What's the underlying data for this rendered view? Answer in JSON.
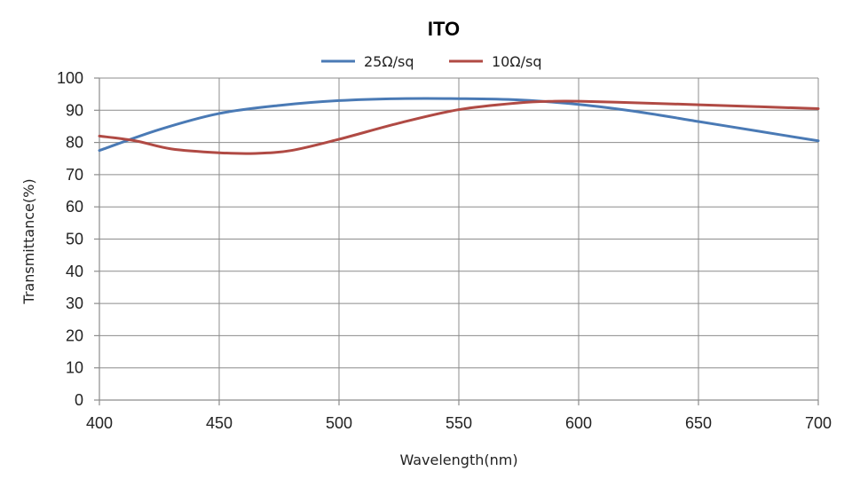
{
  "chart_data": {
    "type": "line",
    "title": "ITO",
    "xlabel": "Wavelength(nm)",
    "ylabel": "Transmittance(%)",
    "xlim": [
      400,
      700
    ],
    "ylim": [
      0,
      100
    ],
    "x_ticks": [
      400,
      450,
      500,
      550,
      600,
      650,
      700
    ],
    "y_ticks": [
      0,
      10,
      20,
      30,
      40,
      50,
      60,
      70,
      80,
      90,
      100
    ],
    "grid": true,
    "legend_position": "top",
    "series": [
      {
        "name": "25Ω/sq",
        "color": "#4a7ab5",
        "points": [
          [
            400,
            77.5
          ],
          [
            425,
            84
          ],
          [
            450,
            89
          ],
          [
            475,
            91.5
          ],
          [
            500,
            93
          ],
          [
            525,
            93.6
          ],
          [
            550,
            93.6
          ],
          [
            575,
            93.2
          ],
          [
            600,
            91.8
          ],
          [
            625,
            89.5
          ],
          [
            650,
            86.5
          ],
          [
            675,
            83.5
          ],
          [
            700,
            80.5
          ]
        ]
      },
      {
        "name": "10Ω/sq",
        "color": "#b04a44",
        "points": [
          [
            400,
            82
          ],
          [
            415,
            80.5
          ],
          [
            430,
            78
          ],
          [
            450,
            76.8
          ],
          [
            465,
            76.6
          ],
          [
            480,
            77.5
          ],
          [
            500,
            81
          ],
          [
            525,
            86
          ],
          [
            550,
            90.2
          ],
          [
            575,
            92.3
          ],
          [
            590,
            92.8
          ],
          [
            600,
            92.8
          ],
          [
            625,
            92.3
          ],
          [
            650,
            91.7
          ],
          [
            675,
            91.1
          ],
          [
            700,
            90.5
          ]
        ]
      }
    ]
  }
}
